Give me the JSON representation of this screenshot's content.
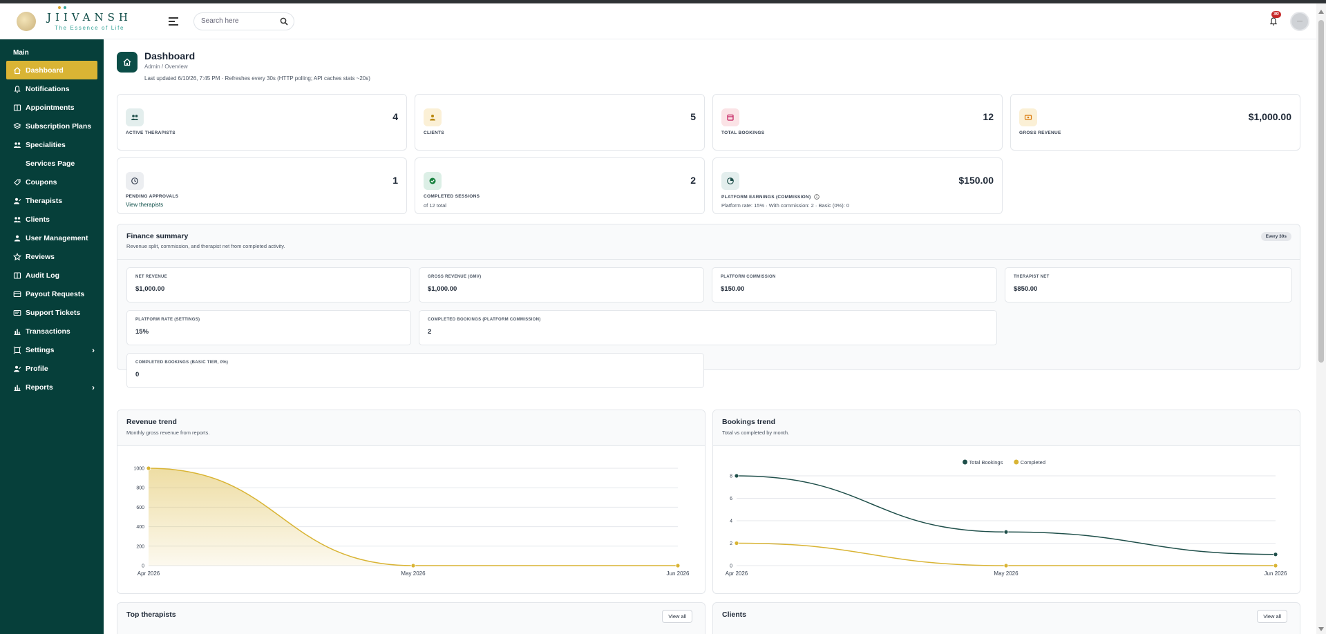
{
  "brand": {
    "title": "JIIVANSH",
    "subtitle": "The Essence of Life"
  },
  "search": {
    "placeholder": "Search here"
  },
  "notifications": {
    "count": "30"
  },
  "sidebar": {
    "section": "Main",
    "items": [
      {
        "label": "Dashboard",
        "name": "dashboard",
        "icon": "home-icon",
        "active": true
      },
      {
        "label": "Notifications",
        "name": "notifications",
        "icon": "bell-icon"
      },
      {
        "label": "Appointments",
        "name": "appointments",
        "icon": "book-icon"
      },
      {
        "label": "Subscription Plans",
        "name": "subscription-plans",
        "icon": "layers-icon"
      },
      {
        "label": "Specialities",
        "name": "specialities",
        "icon": "users-icon"
      },
      {
        "label": "Services Page",
        "name": "services-page",
        "icon": "",
        "sub": true
      },
      {
        "label": "Coupons",
        "name": "coupons",
        "icon": "tag-icon"
      },
      {
        "label": "Therapists",
        "name": "therapists",
        "icon": "user-edit-icon"
      },
      {
        "label": "Clients",
        "name": "clients",
        "icon": "users-icon"
      },
      {
        "label": "User Management",
        "name": "user-management",
        "icon": "user-icon"
      },
      {
        "label": "Reviews",
        "name": "reviews",
        "icon": "star-icon"
      },
      {
        "label": "Audit Log",
        "name": "audit-log",
        "icon": "book-icon"
      },
      {
        "label": "Payout Requests",
        "name": "payout-requests",
        "icon": "card-icon"
      },
      {
        "label": "Support Tickets",
        "name": "support-tickets",
        "icon": "ticket-icon"
      },
      {
        "label": "Transactions",
        "name": "transactions",
        "icon": "bar-chart-icon"
      },
      {
        "label": "Settings",
        "name": "settings",
        "icon": "frame-icon",
        "chevron": true
      },
      {
        "label": "Profile",
        "name": "profile",
        "icon": "user-edit-icon"
      },
      {
        "label": "Reports",
        "name": "reports",
        "icon": "bar-chart-icon",
        "chevron": true
      }
    ]
  },
  "page": {
    "title": "Dashboard",
    "breadcrumb": "Admin  /  Overview",
    "updated": "Last updated 6/10/26, 7:45 PM · Refreshes every 30s (HTTP polling; API caches stats ~20s)"
  },
  "stats": {
    "active_therapists": {
      "label": "ACTIVE THERAPISTS",
      "value": "4"
    },
    "clients": {
      "label": "CLIENTS",
      "value": "5"
    },
    "total_bookings": {
      "label": "TOTAL BOOKINGS",
      "value": "12"
    },
    "gross_revenue": {
      "label": "GROSS REVENUE",
      "value": "$1,000.00"
    },
    "pending_approvals": {
      "label": "PENDING APPROVALS",
      "value": "1",
      "link": "View therapists"
    },
    "completed_sessions": {
      "label": "COMPLETED SESSIONS",
      "value": "2",
      "extra": "of 12 total"
    },
    "platform_earnings": {
      "label": "PLATFORM EARNINGS (COMMISSION)",
      "value": "$150.00",
      "extra": "Platform rate: 15% · With commission: 2 · Basic (0%): 0"
    }
  },
  "finance": {
    "title": "Finance summary",
    "subtitle": "Revenue split, commission, and therapist net from completed activity.",
    "badge": "Every 30s",
    "net_revenue": {
      "label": "NET REVENUE",
      "value": "$1,000.00"
    },
    "gross_revenue": {
      "label": "GROSS REVENUE (GMV)",
      "value": "$1,000.00"
    },
    "platform_commission": {
      "label": "PLATFORM COMMISSION",
      "value": "$150.00"
    },
    "therapist_net": {
      "label": "THERAPIST NET",
      "value": "$850.00"
    },
    "platform_rate": {
      "label": "PLATFORM RATE (SETTINGS)",
      "value": "15%"
    },
    "completed_commission": {
      "label": "COMPLETED BOOKINGS (PLATFORM COMMISSION)",
      "value": "2"
    },
    "completed_basic": {
      "label": "COMPLETED BOOKINGS (BASIC TIER, 0%)",
      "value": "0"
    }
  },
  "revenue_trend": {
    "title": "Revenue trend",
    "subtitle": "Monthly gross revenue from reports."
  },
  "bookings_trend": {
    "title": "Bookings trend",
    "subtitle": "Total vs completed by month."
  },
  "top_therapists": {
    "title": "Top therapists",
    "button": "View all"
  },
  "clients_panel": {
    "title": "Clients",
    "button": "View all"
  },
  "colors": {
    "sidebar": "#063f3a",
    "accent": "#d9b434",
    "teal": "#1f4f4a"
  },
  "chart_data": [
    {
      "type": "area",
      "x": [
        "Apr 2026",
        "May 2026",
        "Jun 2026"
      ],
      "series": [
        {
          "values": [
            1000,
            0,
            0
          ],
          "color": "#d9b434"
        }
      ],
      "yticks": [
        0,
        200,
        400,
        600,
        800,
        1000
      ],
      "ylim": [
        0,
        1000
      ],
      "grid": true
    },
    {
      "type": "line",
      "x": [
        "Apr 2026",
        "May 2026",
        "Jun 2026"
      ],
      "series": [
        {
          "name": "Total Bookings",
          "values": [
            8,
            3,
            1
          ],
          "color": "#1f4f4a"
        },
        {
          "name": "Completed",
          "values": [
            2,
            0,
            0
          ],
          "color": "#d9b434"
        }
      ],
      "yticks": [
        0,
        2,
        4,
        6,
        8
      ],
      "ylim": [
        0,
        8
      ],
      "grid": true,
      "legend": "top-center"
    }
  ]
}
